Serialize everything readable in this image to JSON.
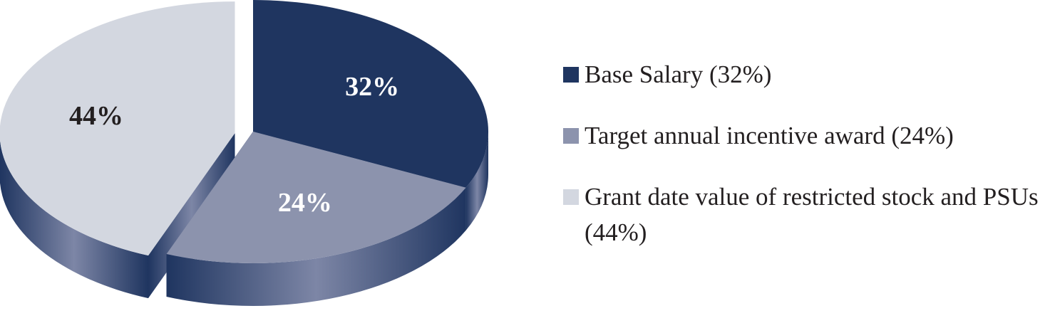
{
  "chart_data": {
    "type": "pie",
    "categories": [
      "Base Salary (32%)",
      "Target annual incentive award (24%)",
      "Grant date value of restricted stock and PSUs (44%)"
    ],
    "values": [
      32,
      24,
      44
    ],
    "value_labels": [
      "32%",
      "24%",
      "44%"
    ],
    "colors": [
      "#1f3560",
      "#8c93ad",
      "#d3d7e0"
    ],
    "exploded": [
      false,
      false,
      true
    ],
    "legend": "right"
  }
}
